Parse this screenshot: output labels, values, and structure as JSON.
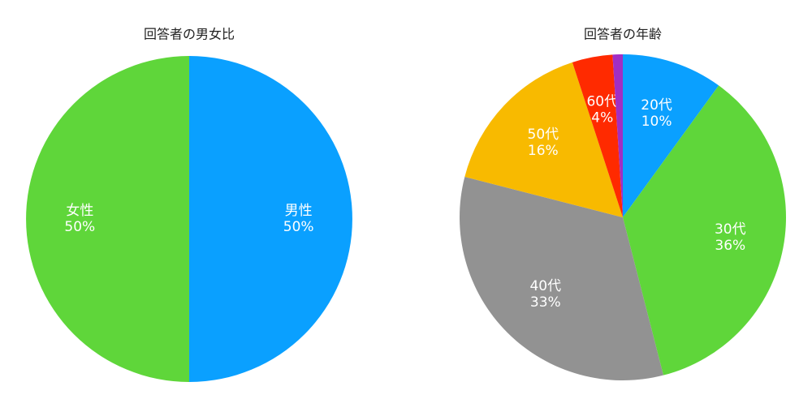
{
  "chart_data": [
    {
      "type": "pie",
      "title": "回答者の男女比",
      "categories": [
        "男性",
        "女性"
      ],
      "values": [
        50,
        50
      ],
      "value_labels": [
        "50%",
        "50%"
      ],
      "colors": [
        "#0aa0ff",
        "#5fd63a"
      ]
    },
    {
      "type": "pie",
      "title": "回答者の年齢",
      "categories": [
        "20代",
        "30代",
        "40代",
        "50代",
        "60代",
        null
      ],
      "values": [
        10,
        36,
        33,
        16,
        4,
        1
      ],
      "value_labels": [
        "10%",
        "36%",
        "33%",
        "16%",
        "4%",
        null
      ],
      "colors": [
        "#0aa0ff",
        "#5fd63a",
        "#929292",
        "#f8ba00",
        "#ff2a00",
        "#a12ec4"
      ]
    }
  ]
}
